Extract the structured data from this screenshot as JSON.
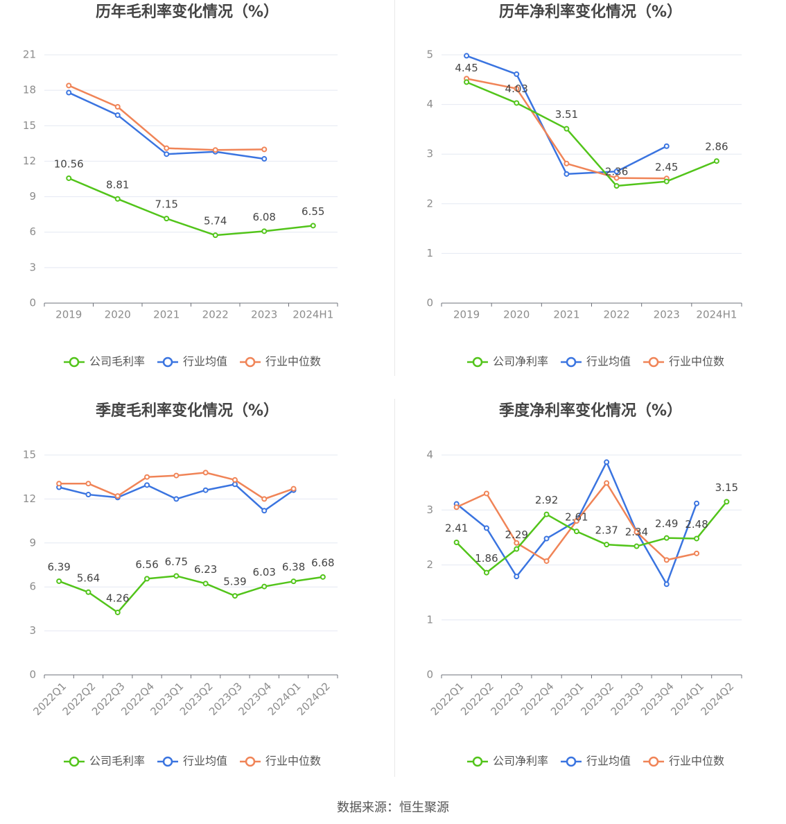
{
  "colors": {
    "company": "#52c41a",
    "industry_avg": "#3a74e0",
    "industry_median": "#f08457",
    "axis_text": "#8c8c8c",
    "grid": "#e4e8f2",
    "title": "#444444"
  },
  "legend_labels": [
    "行业均值",
    "行业中位数"
  ],
  "source": "数据来源：恒生聚源",
  "chart_data": [
    {
      "type": "line",
      "title": "历年毛利率变化情况（%）",
      "categories": [
        "2019",
        "2020",
        "2021",
        "2022",
        "2023",
        "2024H1"
      ],
      "ylim": [
        0,
        21
      ],
      "yticks": [
        0,
        3,
        6,
        9,
        12,
        15,
        18,
        21
      ],
      "grid": true,
      "legend_position": "bottom",
      "series": [
        {
          "name": "公司毛利率",
          "role": "company",
          "values": [
            10.56,
            8.81,
            7.15,
            5.74,
            6.08,
            6.55
          ],
          "labels": [
            "10.56",
            "8.81",
            "7.15",
            "5.74",
            "6.08",
            "6.55"
          ]
        },
        {
          "name": "行业均值",
          "role": "industry_avg",
          "values": [
            17.8,
            15.9,
            12.6,
            12.8,
            12.2,
            null
          ]
        },
        {
          "name": "行业中位数",
          "role": "industry_median",
          "values": [
            18.4,
            16.6,
            13.1,
            12.95,
            13.0,
            null
          ]
        }
      ]
    },
    {
      "type": "line",
      "title": "历年净利率变化情况（%）",
      "categories": [
        "2019",
        "2020",
        "2021",
        "2022",
        "2023",
        "2024H1"
      ],
      "ylim": [
        0,
        5
      ],
      "yticks": [
        0,
        1,
        2,
        3,
        4,
        5
      ],
      "grid": true,
      "legend_position": "bottom",
      "series": [
        {
          "name": "公司净利率",
          "role": "company",
          "values": [
            4.45,
            4.03,
            3.51,
            2.36,
            2.45,
            2.86
          ],
          "labels": [
            "4.45",
            "4.03",
            "3.51",
            "2.36",
            "2.45",
            "2.86"
          ]
        },
        {
          "name": "行业均值",
          "role": "industry_avg",
          "values": [
            4.98,
            4.61,
            2.6,
            2.65,
            3.16,
            null
          ]
        },
        {
          "name": "行业中位数",
          "role": "industry_median",
          "values": [
            4.52,
            4.32,
            2.81,
            2.52,
            2.51,
            null
          ]
        }
      ]
    },
    {
      "type": "line",
      "title": "季度毛利率变化情况（%）",
      "categories": [
        "2022Q1",
        "2022Q2",
        "2022Q3",
        "2022Q4",
        "2023Q1",
        "2023Q2",
        "2023Q3",
        "2023Q4",
        "2024Q1",
        "2024Q2"
      ],
      "ylim": [
        0,
        15
      ],
      "yticks": [
        0,
        3,
        6,
        9,
        12,
        15
      ],
      "grid": true,
      "legend_position": "bottom",
      "series": [
        {
          "name": "公司毛利率",
          "role": "company",
          "values": [
            6.39,
            5.64,
            4.26,
            6.56,
            6.75,
            6.23,
            5.39,
            6.03,
            6.38,
            6.68
          ],
          "labels": [
            "6.39",
            "5.64",
            "4.26",
            "6.56",
            "6.75",
            "6.23",
            "5.39",
            "6.03",
            "6.38",
            "6.68"
          ]
        },
        {
          "name": "行业均值",
          "role": "industry_avg",
          "values": [
            12.8,
            12.3,
            12.1,
            12.95,
            12.0,
            12.6,
            13.0,
            11.2,
            12.6,
            null
          ]
        },
        {
          "name": "行业中位数",
          "role": "industry_median",
          "values": [
            13.05,
            13.05,
            12.2,
            13.5,
            13.6,
            13.8,
            13.3,
            12.0,
            12.7,
            null
          ]
        }
      ]
    },
    {
      "type": "line",
      "title": "季度净利率变化情况（%）",
      "categories": [
        "2022Q1",
        "2022Q2",
        "2022Q3",
        "2022Q4",
        "2023Q1",
        "2023Q2",
        "2023Q3",
        "2023Q4",
        "2024Q1",
        "2024Q2"
      ],
      "ylim": [
        0,
        4
      ],
      "yticks": [
        0,
        1,
        2,
        3,
        4
      ],
      "grid": true,
      "legend_position": "bottom",
      "series": [
        {
          "name": "公司净利率",
          "role": "company",
          "values": [
            2.41,
            1.86,
            2.29,
            2.92,
            2.61,
            2.37,
            2.34,
            2.49,
            2.48,
            3.15
          ],
          "labels": [
            "2.41",
            "1.86",
            "2.29",
            "2.92",
            "2.61",
            "2.37",
            "2.34",
            "2.49",
            "2.48",
            "3.15"
          ]
        },
        {
          "name": "行业均值",
          "role": "industry_avg",
          "values": [
            3.11,
            2.67,
            1.79,
            2.48,
            2.8,
            3.87,
            2.6,
            1.65,
            3.12,
            null
          ]
        },
        {
          "name": "行业中位数",
          "role": "industry_median",
          "values": [
            3.05,
            3.3,
            2.4,
            2.07,
            2.8,
            3.49,
            2.6,
            2.09,
            2.21,
            null
          ]
        }
      ]
    }
  ]
}
